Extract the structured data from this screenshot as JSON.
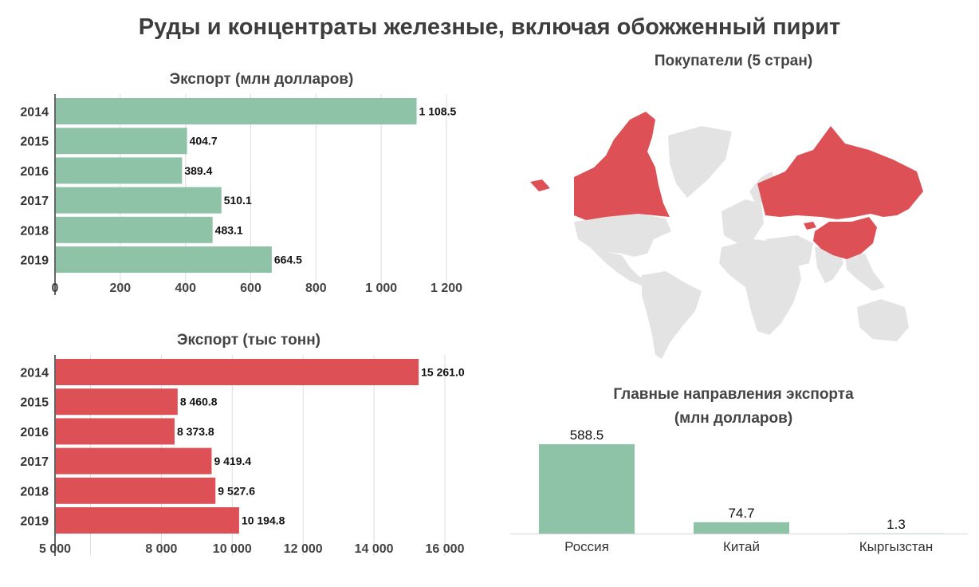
{
  "title": "Руды и концентраты железные, включая обожженный пирит",
  "chart_data": [
    {
      "type": "bar",
      "orientation": "horizontal",
      "title": "Экспорт (млн долларов)",
      "categories": [
        "2014",
        "2015",
        "2016",
        "2017",
        "2018",
        "2019"
      ],
      "values": [
        1108.5,
        404.7,
        389.4,
        510.1,
        483.1,
        664.5
      ],
      "value_labels": [
        "1 108.5",
        "404.7",
        "389.4",
        "510.1",
        "483.1",
        "664.5"
      ],
      "xlim": [
        0,
        1200
      ],
      "ticks": [
        0,
        200,
        400,
        600,
        800,
        1000,
        1200
      ],
      "tick_labels": [
        "0",
        "200",
        "400",
        "600",
        "800",
        "1 000",
        "1 200"
      ],
      "color": "#8fc3a7",
      "grid": true
    },
    {
      "type": "bar",
      "orientation": "horizontal",
      "title": "Экспорт (тыс тонн)",
      "categories": [
        "2014",
        "2015",
        "2016",
        "2017",
        "2018",
        "2019"
      ],
      "values": [
        15261.0,
        8460.8,
        8373.8,
        9419.4,
        9527.6,
        10194.8
      ],
      "value_labels": [
        "15 261.0",
        "8 460.8",
        "8 373.8",
        "9 419.4",
        "9 527.6",
        "10 194.8"
      ],
      "xlim": [
        5000,
        16000
      ],
      "ticks": [
        5000,
        6000,
        8000,
        10000,
        12000,
        14000,
        16000
      ],
      "tick_labels": [
        "5 000",
        "",
        "8 000",
        "10 000",
        "12 000",
        "14 000",
        "16 000"
      ],
      "color": "#dd5156",
      "grid": true
    },
    {
      "type": "map",
      "title": "Покупатели (5 стран)",
      "highlight_color": "#dd5156",
      "base_color": "#e3e3e3"
    },
    {
      "type": "bar",
      "orientation": "vertical",
      "title_lines": [
        "Главные направления экспорта",
        "(млн долларов)"
      ],
      "categories": [
        "Россия",
        "Китай",
        "Кыргызстан"
      ],
      "values": [
        588.5,
        74.7,
        1.3
      ],
      "value_labels": [
        "588.5",
        "74.7",
        "1.3"
      ],
      "color": "#8fc3a7"
    }
  ]
}
